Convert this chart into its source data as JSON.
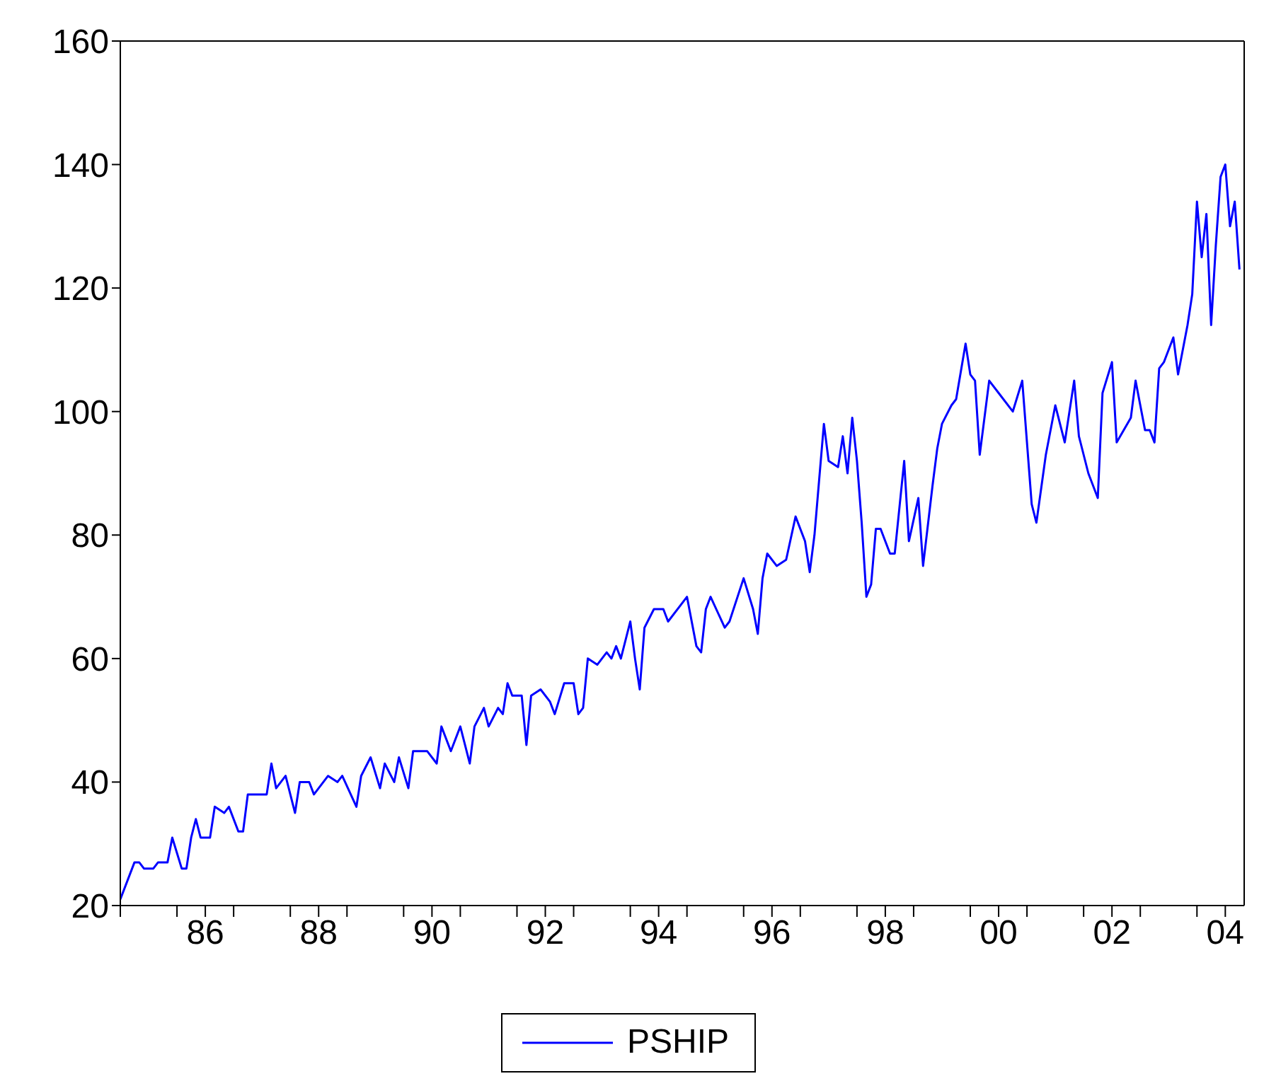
{
  "chart_data": {
    "type": "line",
    "legend": "bottom",
    "grid": false,
    "marker": "none",
    "line_style": "solid",
    "x": [
      "1985-01",
      "1985-04",
      "1985-05",
      "1985-06",
      "1985-08",
      "1985-09",
      "1985-11",
      "1985-12",
      "1986-02",
      "1986-03",
      "1986-04",
      "1986-05",
      "1986-06",
      "1986-08",
      "1986-09",
      "1986-11",
      "1986-12",
      "1987-02",
      "1987-03",
      "1987-04",
      "1987-08",
      "1987-09",
      "1987-10",
      "1987-12",
      "1988-02",
      "1988-03",
      "1988-05",
      "1988-06",
      "1988-09",
      "1988-11",
      "1988-12",
      "1989-03",
      "1989-04",
      "1989-06",
      "1989-08",
      "1989-09",
      "1989-11",
      "1989-12",
      "1990-02",
      "1990-03",
      "1990-06",
      "1990-08",
      "1990-09",
      "1990-11",
      "1991-01",
      "1991-03",
      "1991-04",
      "1991-06",
      "1991-07",
      "1991-09",
      "1991-10",
      "1991-11",
      "1991-12",
      "1992-02",
      "1992-03",
      "1992-04",
      "1992-06",
      "1992-08",
      "1992-09",
      "1992-11",
      "1993-01",
      "1993-02",
      "1993-03",
      "1993-04",
      "1993-06",
      "1993-08",
      "1993-09",
      "1993-10",
      "1993-11",
      "1994-01",
      "1994-02",
      "1994-03",
      "1994-04",
      "1994-06",
      "1994-08",
      "1994-09",
      "1994-12",
      "1995-01",
      "1995-03",
      "1995-04",
      "1995-05",
      "1995-06",
      "1995-09",
      "1995-10",
      "1996-01",
      "1996-03",
      "1996-04",
      "1996-05",
      "1996-06",
      "1996-08",
      "1996-10",
      "1996-12",
      "1997-02",
      "1997-03",
      "1997-04",
      "1997-05",
      "1997-06",
      "1997-07",
      "1997-09",
      "1997-10",
      "1997-11",
      "1997-12",
      "1998-01",
      "1998-02",
      "1998-03",
      "1998-04",
      "1998-05",
      "1998-06",
      "1998-08",
      "1998-09",
      "1998-11",
      "1998-12",
      "1999-02",
      "1999-03",
      "1999-05",
      "1999-06",
      "1999-07",
      "1999-09",
      "1999-10",
      "1999-12",
      "2000-01",
      "2000-02",
      "2000-03",
      "2000-05",
      "2000-07",
      "2000-10",
      "2000-12",
      "2001-01",
      "2001-02",
      "2001-03",
      "2001-05",
      "2001-07",
      "2001-09",
      "2001-11",
      "2001-12",
      "2002-02",
      "2002-04",
      "2002-05",
      "2002-07",
      "2002-08",
      "2002-11",
      "2002-12",
      "2003-02",
      "2003-03",
      "2003-04",
      "2003-05",
      "2003-06",
      "2003-08",
      "2003-09",
      "2003-11",
      "2003-12",
      "2004-01",
      "2004-02",
      "2004-03",
      "2004-04",
      "2004-05",
      "2004-06",
      "2004-07",
      "2004-08",
      "2004-09",
      "2004-10"
    ],
    "series": [
      {
        "name": "PSHIP",
        "color": "#0000ff",
        "values": [
          21,
          27,
          27,
          26,
          26,
          27,
          27,
          31,
          26,
          26,
          31,
          34,
          31,
          31,
          36,
          35,
          36,
          32,
          32,
          38,
          38,
          43,
          39,
          41,
          35,
          40,
          40,
          38,
          41,
          40,
          41,
          36,
          41,
          44,
          39,
          43,
          40,
          44,
          39,
          45,
          45,
          43,
          49,
          45,
          49,
          43,
          49,
          52,
          49,
          52,
          51,
          56,
          54,
          54,
          46,
          54,
          55,
          53,
          51,
          56,
          56,
          51,
          52,
          60,
          59,
          61,
          60,
          62,
          60,
          66,
          60,
          55,
          65,
          68,
          68,
          66,
          69,
          70,
          62,
          61,
          68,
          70,
          65,
          66,
          73,
          68,
          64,
          73,
          77,
          75,
          76,
          83,
          79,
          74,
          80,
          89,
          98,
          92,
          91,
          96,
          90,
          99,
          92,
          82,
          70,
          72,
          81,
          81,
          77,
          77,
          92,
          79,
          86,
          75,
          88,
          94,
          98,
          101,
          102,
          111,
          106,
          105,
          93,
          105,
          103,
          100,
          105,
          95,
          85,
          82,
          93,
          101,
          95,
          105,
          96,
          90,
          86,
          103,
          108,
          95,
          99,
          105,
          97,
          97,
          95,
          107,
          108,
          112,
          106,
          114,
          119,
          134,
          125,
          132,
          114,
          127,
          138,
          140,
          130,
          134,
          123
        ]
      }
    ],
    "xlim": [
      "1985-01",
      "2004-11"
    ],
    "xticks": [
      {
        "value": "1985-01",
        "label": null
      },
      {
        "value": "1986-01",
        "label": null
      },
      {
        "value": "1986-07",
        "label": "86"
      },
      {
        "value": "1987-01",
        "label": null
      },
      {
        "value": "1988-01",
        "label": null
      },
      {
        "value": "1988-07",
        "label": "88"
      },
      {
        "value": "1989-01",
        "label": null
      },
      {
        "value": "1990-01",
        "label": null
      },
      {
        "value": "1990-07",
        "label": "90"
      },
      {
        "value": "1991-01",
        "label": null
      },
      {
        "value": "1992-01",
        "label": null
      },
      {
        "value": "1992-07",
        "label": "92"
      },
      {
        "value": "1993-01",
        "label": null
      },
      {
        "value": "1994-01",
        "label": null
      },
      {
        "value": "1994-07",
        "label": "94"
      },
      {
        "value": "1995-01",
        "label": null
      },
      {
        "value": "1996-01",
        "label": null
      },
      {
        "value": "1996-07",
        "label": "96"
      },
      {
        "value": "1997-01",
        "label": null
      },
      {
        "value": "1998-01",
        "label": null
      },
      {
        "value": "1998-07",
        "label": "98"
      },
      {
        "value": "1999-01",
        "label": null
      },
      {
        "value": "2000-01",
        "label": null
      },
      {
        "value": "2000-07",
        "label": "00"
      },
      {
        "value": "2001-01",
        "label": null
      },
      {
        "value": "2002-01",
        "label": null
      },
      {
        "value": "2002-07",
        "label": "02"
      },
      {
        "value": "2003-01",
        "label": null
      },
      {
        "value": "2004-01",
        "label": null
      },
      {
        "value": "2004-07",
        "label": "04"
      }
    ],
    "ylim": [
      20,
      160
    ],
    "yticks": [
      20,
      40,
      60,
      80,
      100,
      120,
      140,
      160
    ]
  }
}
